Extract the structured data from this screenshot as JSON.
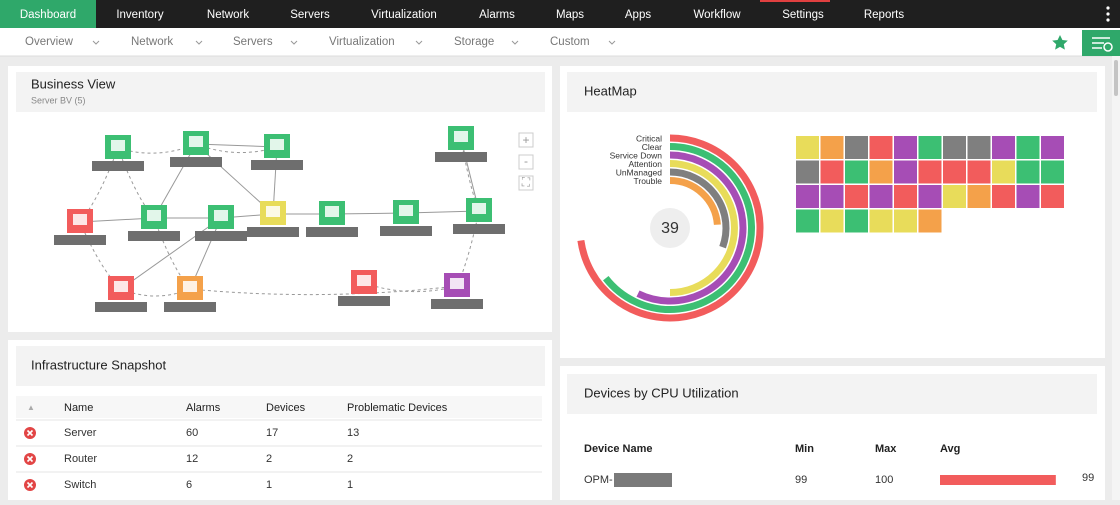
{
  "nav": {
    "items": [
      "Dashboard",
      "Inventory",
      "Network",
      "Servers",
      "Virtualization",
      "Alarms",
      "Maps",
      "Apps",
      "Workflow",
      "Settings",
      "Reports"
    ]
  },
  "subnav": {
    "items": [
      "Overview",
      "Network",
      "Servers",
      "Virtualization",
      "Storage",
      "Custom"
    ]
  },
  "business_view": {
    "title": "Business View",
    "subtitle": "Server BV (5)"
  },
  "heatmap": {
    "title": "HeatMap",
    "total": 39,
    "legend": [
      {
        "name": "Critical",
        "color": "#f25c5c"
      },
      {
        "name": "Clear",
        "color": "#3cbf73"
      },
      {
        "name": "Service Down",
        "color": "#a64db5"
      },
      {
        "name": "Attention",
        "color": "#e8dc5a"
      },
      {
        "name": "UnManaged",
        "color": "#7f7f7f"
      },
      {
        "name": "Trouble",
        "color": "#f4a14a"
      }
    ],
    "tiles": [
      "#e8dc5a",
      "#f4a14a",
      "#7f7f7f",
      "#f25c5c",
      "#a64db5",
      "#3cbf73",
      "#7f7f7f",
      "#7f7f7f",
      "#a64db5",
      "#3cbf73",
      "#a64db5",
      "#7f7f7f",
      "#f25c5c",
      "#3cbf73",
      "#f4a14a",
      "#a64db5",
      "#f25c5c",
      "#f25c5c",
      "#f25c5c",
      "#e8dc5a",
      "#3cbf73",
      "#3cbf73",
      "#a64db5",
      "#a64db5",
      "#f25c5c",
      "#a64db5",
      "#f25c5c",
      "#a64db5",
      "#e8dc5a",
      "#f4a14a",
      "#f25c5c",
      "#a64db5",
      "#f25c5c",
      "#3cbf73",
      "#e8dc5a",
      "#3cbf73",
      "#e8dc5a",
      "#e8dc5a",
      "#f4a14a"
    ]
  },
  "infrastructure_snapshot": {
    "title": "Infrastructure Snapshot",
    "columns": [
      "Name",
      "Alarms",
      "Devices",
      "Problematic Devices"
    ],
    "rows": [
      [
        "Server",
        60,
        17,
        13
      ],
      [
        "Router",
        12,
        2,
        2
      ],
      [
        "Switch",
        6,
        1,
        1
      ]
    ]
  },
  "cpu_utilization": {
    "title": "Devices by CPU Utilization",
    "columns": [
      "Device Name",
      "Min",
      "Max",
      "Avg"
    ],
    "rows": [
      {
        "device": "OPM-",
        "min": 99,
        "max": 100,
        "avg": 99
      }
    ]
  }
}
